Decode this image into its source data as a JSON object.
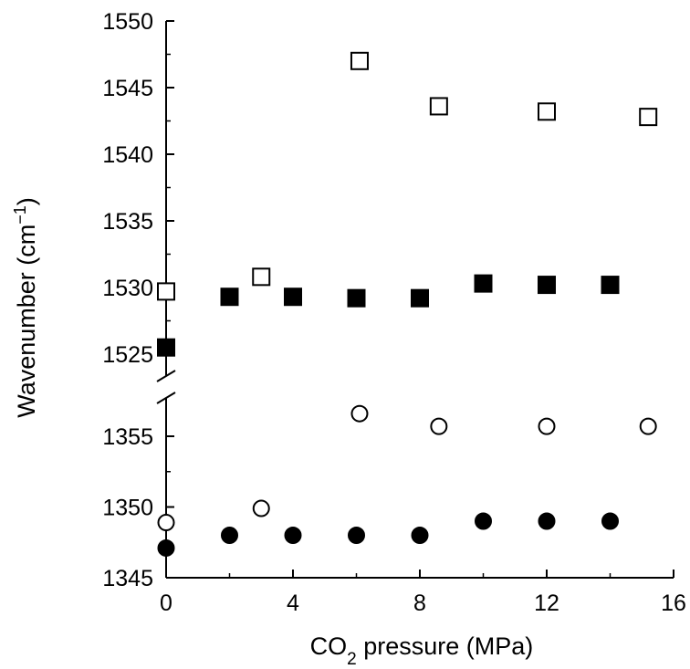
{
  "chart_data": {
    "type": "scatter",
    "title": "",
    "xlabel": {
      "prefix": "CO",
      "sub": "2",
      "suffix": " pressure (MPa)"
    },
    "ylabel": {
      "prefix": "Wavenumber (cm",
      "sup": "−1",
      "suffix": ")"
    },
    "xlim": [
      0,
      16
    ],
    "x_ticks": [
      0,
      4,
      8,
      12,
      16
    ],
    "x_tick_labels": [
      "0",
      "4",
      "8",
      "12",
      "16"
    ],
    "y_axis_break": true,
    "y_segments": [
      {
        "name": "upper",
        "ylim": [
          1523,
          1550
        ],
        "ticks": [
          1525,
          1530,
          1535,
          1540,
          1545,
          1550
        ],
        "tick_labels": [
          "1525",
          "1530",
          "1535",
          "1540",
          "1545",
          "1550"
        ]
      },
      {
        "name": "lower",
        "ylim": [
          1345,
          1358
        ],
        "ticks": [
          1345,
          1350,
          1355
        ],
        "tick_labels": [
          "1345",
          "1350",
          "1355"
        ]
      }
    ],
    "grid": false,
    "legend": "none",
    "series": [
      {
        "segment": "upper",
        "marker": "square",
        "filled": false,
        "points": [
          [
            0,
            1529.7
          ],
          [
            3,
            1530.8
          ],
          [
            6.1,
            1547.0
          ],
          [
            8.6,
            1543.6
          ],
          [
            12,
            1543.2
          ],
          [
            15.2,
            1542.8
          ]
        ]
      },
      {
        "segment": "upper",
        "marker": "square",
        "filled": true,
        "points": [
          [
            0,
            1525.5
          ],
          [
            2,
            1529.3
          ],
          [
            4,
            1529.3
          ],
          [
            6,
            1529.2
          ],
          [
            8,
            1529.2
          ],
          [
            10,
            1530.3
          ],
          [
            12,
            1530.2
          ],
          [
            14,
            1530.2
          ]
        ]
      },
      {
        "segment": "lower",
        "marker": "circle",
        "filled": false,
        "points": [
          [
            0,
            1348.9
          ],
          [
            3,
            1349.9
          ],
          [
            6.1,
            1356.6
          ],
          [
            8.6,
            1355.7
          ],
          [
            12,
            1355.7
          ],
          [
            15.2,
            1355.7
          ]
        ]
      },
      {
        "segment": "lower",
        "marker": "circle",
        "filled": true,
        "points": [
          [
            0,
            1347.1
          ],
          [
            2,
            1348.0
          ],
          [
            4,
            1348.0
          ],
          [
            6,
            1348.0
          ],
          [
            8,
            1348.0
          ],
          [
            10,
            1349.0
          ],
          [
            12,
            1349.0
          ],
          [
            14,
            1349.0
          ]
        ]
      }
    ]
  }
}
